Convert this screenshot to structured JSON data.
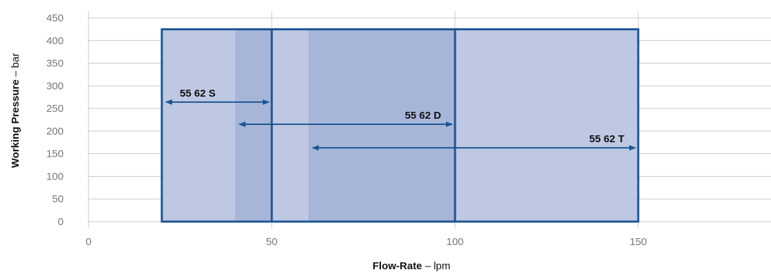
{
  "chart_data": {
    "type": "range-bar",
    "xlabel": {
      "bold": "Flow-Rate",
      "rest": " – lpm"
    },
    "ylabel": {
      "bold": "Working Pressure",
      "rest": " – bar"
    },
    "xlim": [
      0,
      185
    ],
    "ylim": [
      0,
      450
    ],
    "x_ticks": [
      0,
      50,
      100,
      150
    ],
    "y_ticks": [
      0,
      50,
      100,
      150,
      200,
      250,
      300,
      350,
      400,
      450
    ],
    "grid": true,
    "max_pressure": 425,
    "series": [
      {
        "name": "55 62 S",
        "x_min": 20,
        "x_max": 50,
        "arrow_y": 264,
        "fill": "#8c9fcd",
        "opacity": 0.45
      },
      {
        "name": "55 62 D",
        "x_min": 40,
        "x_max": 100,
        "arrow_y": 215,
        "fill": "#8c9fcd",
        "opacity": 0.45
      },
      {
        "name": "55 62 T",
        "x_min": 60,
        "x_max": 150,
        "arrow_y": 163,
        "fill": "#8c9fcd",
        "opacity": 0.45
      }
    ],
    "colors": {
      "outline": "#1c5596",
      "arrow": "#1c5596",
      "background_band": "#e7eaf5"
    }
  }
}
